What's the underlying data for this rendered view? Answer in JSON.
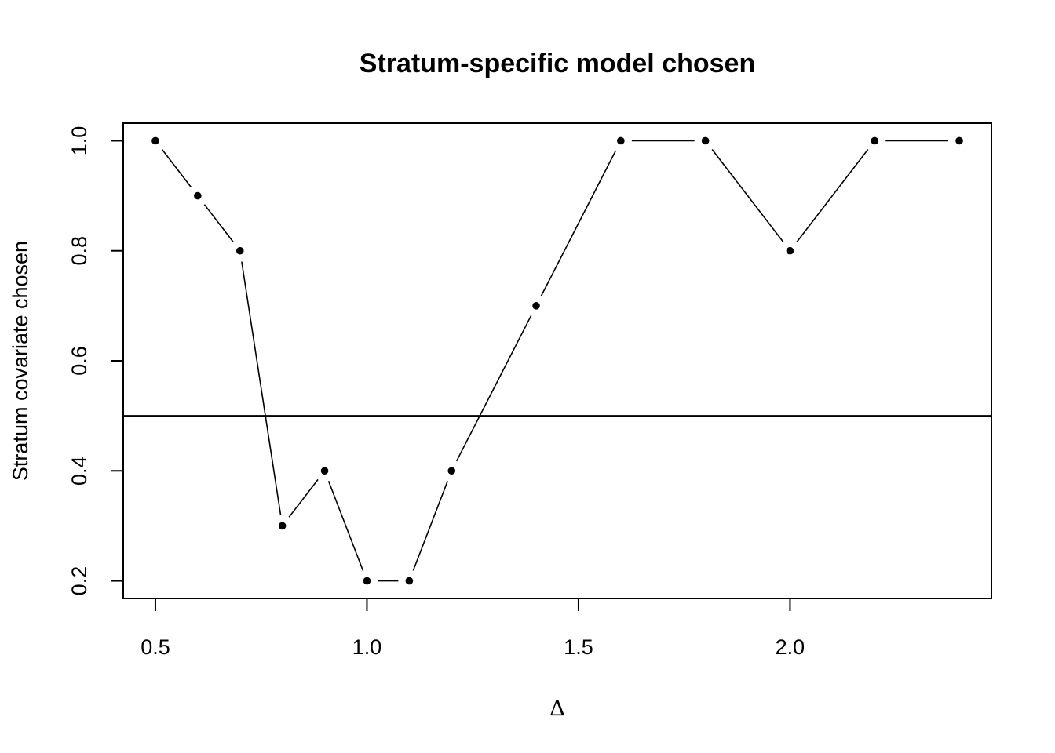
{
  "chart_data": {
    "type": "line",
    "title": "Stratum-specific model chosen",
    "xlabel": "Δ",
    "ylabel": "Stratum covariate chosen",
    "x": [
      0.5,
      0.6,
      0.7,
      0.8,
      0.9,
      1.0,
      1.1,
      1.2,
      1.4,
      1.6,
      1.8,
      2.0,
      2.2,
      2.4
    ],
    "y": [
      1.0,
      0.9,
      0.8,
      0.3,
      0.4,
      0.2,
      0.2,
      0.4,
      0.7,
      1.0,
      1.0,
      0.8,
      1.0,
      1.0
    ],
    "xlim": [
      0.424,
      2.476
    ],
    "ylim": [
      0.168,
      1.032
    ],
    "xticks": [
      "0.5",
      "1.0",
      "1.5",
      "2.0"
    ],
    "yticks": [
      "0.2",
      "0.4",
      "0.6",
      "0.8",
      "1.0"
    ],
    "hline": 0.5,
    "grid": false,
    "marker": "filled-circle",
    "line_style": "points-connected-with-gaps"
  }
}
